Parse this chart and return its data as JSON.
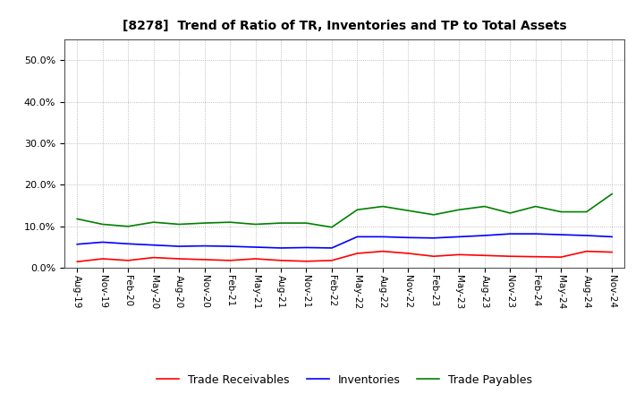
{
  "title": "[8278]  Trend of Ratio of TR, Inventories and TP to Total Assets",
  "x_labels": [
    "Aug-19",
    "Nov-19",
    "Feb-20",
    "May-20",
    "Aug-20",
    "Nov-20",
    "Feb-21",
    "May-21",
    "Aug-21",
    "Nov-21",
    "Feb-22",
    "May-22",
    "Aug-22",
    "Nov-22",
    "Feb-23",
    "May-23",
    "Aug-23",
    "Nov-23",
    "Feb-24",
    "May-24",
    "Aug-24",
    "Nov-24"
  ],
  "trade_receivables": [
    0.015,
    0.022,
    0.018,
    0.025,
    0.022,
    0.02,
    0.018,
    0.022,
    0.018,
    0.016,
    0.018,
    0.035,
    0.04,
    0.035,
    0.028,
    0.032,
    0.03,
    0.028,
    0.027,
    0.026,
    0.04,
    0.038
  ],
  "inventories": [
    0.057,
    0.062,
    0.058,
    0.055,
    0.052,
    0.053,
    0.052,
    0.05,
    0.048,
    0.049,
    0.048,
    0.075,
    0.075,
    0.073,
    0.072,
    0.075,
    0.078,
    0.082,
    0.082,
    0.08,
    0.078,
    0.075
  ],
  "trade_payables": [
    0.118,
    0.105,
    0.1,
    0.11,
    0.105,
    0.108,
    0.11,
    0.105,
    0.108,
    0.108,
    0.098,
    0.14,
    0.148,
    0.138,
    0.128,
    0.14,
    0.148,
    0.132,
    0.148,
    0.135,
    0.135,
    0.178
  ],
  "tr_color": "#ff0000",
  "inv_color": "#0000ff",
  "tp_color": "#008000",
  "background_color": "#ffffff",
  "grid_color": "#aaaaaa",
  "ylim": [
    0.0,
    0.55
  ],
  "yticks": [
    0.0,
    0.1,
    0.2,
    0.3,
    0.4,
    0.5
  ],
  "legend_labels": [
    "Trade Receivables",
    "Inventories",
    "Trade Payables"
  ]
}
